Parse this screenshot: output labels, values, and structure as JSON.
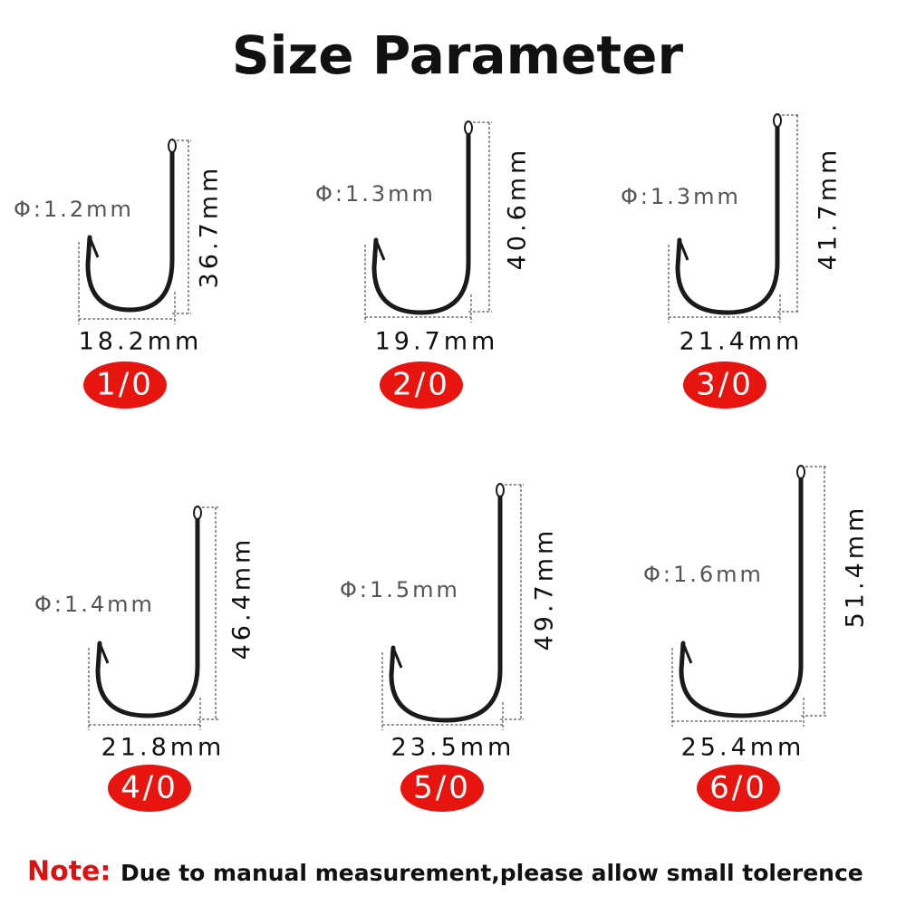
{
  "title": "Size Parameter",
  "hooks": [
    {
      "diameter": "Φ:1.2mm",
      "length": "36.7mm",
      "width": "18.2mm",
      "size": "1/0"
    },
    {
      "diameter": "Φ:1.3mm",
      "length": "40.6mm",
      "width": "19.7mm",
      "size": "2/0"
    },
    {
      "diameter": "Φ:1.3mm",
      "length": "41.7mm",
      "width": "21.4mm",
      "size": "3/0"
    },
    {
      "diameter": "Φ:1.4mm",
      "length": "46.4mm",
      "width": "21.8mm",
      "size": "4/0"
    },
    {
      "diameter": "Φ:1.5mm",
      "length": "49.7mm",
      "width": "23.5mm",
      "size": "5/0"
    },
    {
      "diameter": "Φ:1.6mm",
      "length": "51.4mm",
      "width": "25.4mm",
      "size": "6/0"
    }
  ],
  "note": {
    "label": "Note:",
    "text": "Due to manual measurement,please allow small tolerence"
  }
}
